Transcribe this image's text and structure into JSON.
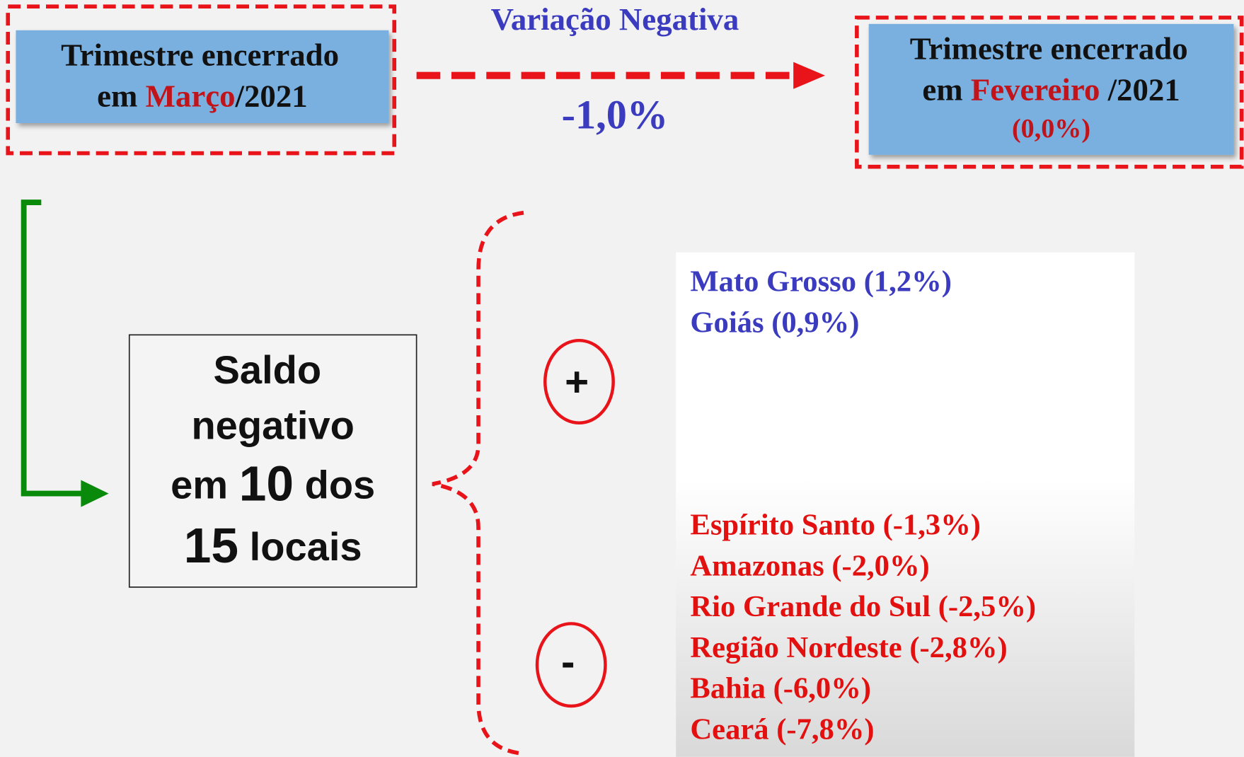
{
  "left_box": {
    "line1": "Trimestre encerrado",
    "prefix": "em ",
    "highlight": "Março",
    "suffix": "/2021"
  },
  "arrow": {
    "label": "Variação Negativa",
    "value": "-1,0%"
  },
  "right_box": {
    "line1": "Trimestre encerrado",
    "prefix": "em ",
    "highlight": "Fevereiro",
    "suffix": " /2021",
    "note": "(0,0%)"
  },
  "summary": {
    "line1": "Saldo",
    "line2": "negativo",
    "line3_prefix": "em ",
    "line3_number": "10",
    "line3_suffix": " dos",
    "line4_number": "15",
    "line4_suffix": " locais"
  },
  "signs": {
    "positive": "+",
    "negative": "-"
  },
  "positive": [
    "Mato Grosso (1,2%)",
    "Goiás (0,9%)"
  ],
  "negative": [
    "Espírito Santo (-1,3%)",
    "Amazonas (-2,0%)",
    "Rio Grande do Sul (-2,5%)",
    "Região Nordeste (-2,8%)",
    "Bahia (-6,0%)",
    "Ceará (-7,8%)"
  ]
}
